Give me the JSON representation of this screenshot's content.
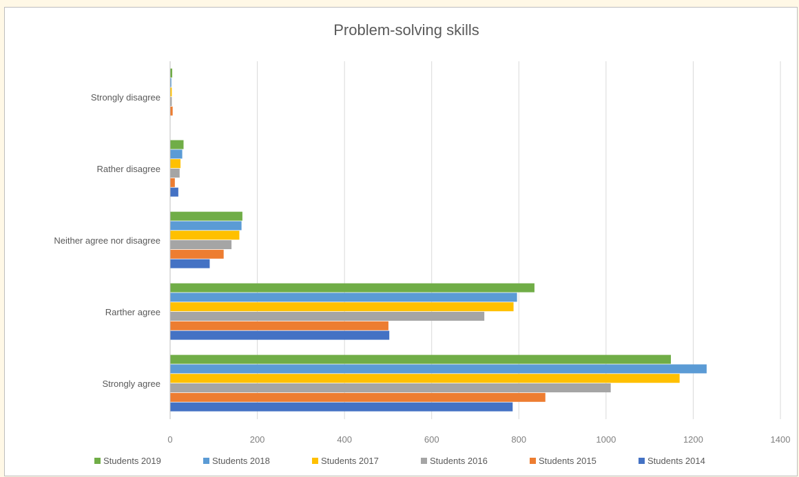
{
  "chart_data": {
    "type": "bar",
    "orientation": "horizontal",
    "title": "Problem-solving skills",
    "xlabel": "",
    "ylabel": "",
    "xlim": [
      0,
      1400
    ],
    "x_ticks": [
      0,
      200,
      400,
      600,
      800,
      1000,
      1200,
      1400
    ],
    "grid": true,
    "legend_position": "bottom",
    "categories": [
      "Strongly disagree",
      "Rather disagree",
      "Neither agree nor disagree",
      "Rarther agree",
      "Strongly agree"
    ],
    "series": [
      {
        "name": "Students 2019",
        "color": "#70ad47",
        "values": [
          4,
          30,
          165,
          835,
          1148
        ]
      },
      {
        "name": "Students 2018",
        "color": "#5b9bd5",
        "values": [
          2,
          27,
          163,
          795,
          1230
        ]
      },
      {
        "name": "Students 2017",
        "color": "#ffc000",
        "values": [
          3,
          23,
          158,
          787,
          1168
        ]
      },
      {
        "name": "Students 2016",
        "color": "#a5a5a5",
        "values": [
          3,
          21,
          140,
          720,
          1010
        ]
      },
      {
        "name": "Students 2015",
        "color": "#ed7d31",
        "values": [
          5,
          10,
          122,
          500,
          860
        ]
      },
      {
        "name": "Students 2014",
        "color": "#4472c4",
        "values": [
          0,
          18,
          90,
          502,
          785
        ]
      }
    ]
  }
}
